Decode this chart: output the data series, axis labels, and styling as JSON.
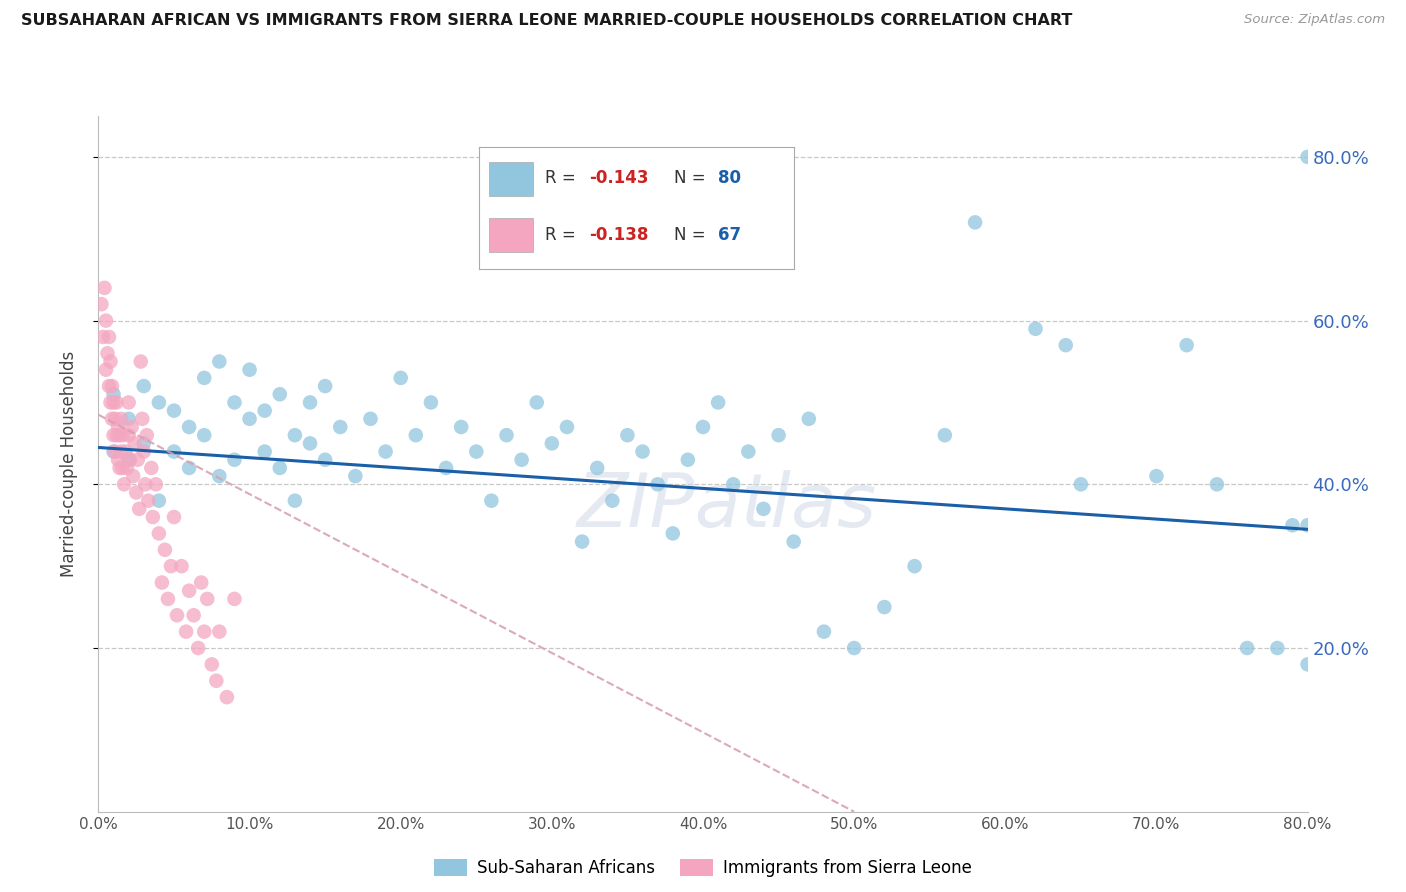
{
  "title": "SUBSAHARAN AFRICAN VS IMMIGRANTS FROM SIERRA LEONE MARRIED-COUPLE HOUSEHOLDS CORRELATION CHART",
  "source": "Source: ZipAtlas.com",
  "ylabel": "Married-couple Households",
  "xlim": [
    0.0,
    0.8
  ],
  "ylim": [
    0.0,
    0.85
  ],
  "xticks": [
    0.0,
    0.1,
    0.2,
    0.3,
    0.4,
    0.5,
    0.6,
    0.7,
    0.8
  ],
  "yticks": [
    0.2,
    0.4,
    0.6,
    0.8
  ],
  "blue_color": "#92c5de",
  "pink_color": "#f4a6c0",
  "trend_blue_color": "#1a5fa8",
  "trend_pink_color": "#d8a0b0",
  "R_blue": -0.143,
  "N_blue": 80,
  "R_pink": -0.138,
  "N_pink": 67,
  "legend_label_blue": "Sub-Saharan Africans",
  "legend_label_pink": "Immigrants from Sierra Leone",
  "watermark": "ZIPatlas",
  "blue_scatter_x": [
    0.01,
    0.01,
    0.02,
    0.02,
    0.03,
    0.03,
    0.04,
    0.04,
    0.05,
    0.05,
    0.06,
    0.06,
    0.07,
    0.07,
    0.08,
    0.08,
    0.09,
    0.09,
    0.1,
    0.1,
    0.11,
    0.11,
    0.12,
    0.12,
    0.13,
    0.13,
    0.14,
    0.14,
    0.15,
    0.15,
    0.16,
    0.17,
    0.18,
    0.19,
    0.2,
    0.21,
    0.22,
    0.23,
    0.24,
    0.25,
    0.26,
    0.27,
    0.28,
    0.29,
    0.3,
    0.31,
    0.32,
    0.33,
    0.34,
    0.35,
    0.36,
    0.37,
    0.38,
    0.39,
    0.4,
    0.41,
    0.42,
    0.43,
    0.44,
    0.45,
    0.46,
    0.47,
    0.48,
    0.5,
    0.52,
    0.54,
    0.56,
    0.58,
    0.62,
    0.64,
    0.65,
    0.7,
    0.72,
    0.74,
    0.76,
    0.78,
    0.79,
    0.8,
    0.8,
    0.8
  ],
  "blue_scatter_y": [
    0.44,
    0.51,
    0.48,
    0.43,
    0.45,
    0.52,
    0.5,
    0.38,
    0.44,
    0.49,
    0.47,
    0.42,
    0.53,
    0.46,
    0.41,
    0.55,
    0.5,
    0.43,
    0.48,
    0.54,
    0.44,
    0.49,
    0.42,
    0.51,
    0.46,
    0.38,
    0.5,
    0.45,
    0.43,
    0.52,
    0.47,
    0.41,
    0.48,
    0.44,
    0.53,
    0.46,
    0.5,
    0.42,
    0.47,
    0.44,
    0.38,
    0.46,
    0.43,
    0.5,
    0.45,
    0.47,
    0.33,
    0.42,
    0.38,
    0.46,
    0.44,
    0.4,
    0.34,
    0.43,
    0.47,
    0.5,
    0.4,
    0.44,
    0.37,
    0.46,
    0.33,
    0.48,
    0.22,
    0.2,
    0.25,
    0.3,
    0.46,
    0.72,
    0.59,
    0.57,
    0.4,
    0.41,
    0.57,
    0.4,
    0.2,
    0.2,
    0.35,
    0.35,
    0.18,
    0.8
  ],
  "pink_scatter_x": [
    0.002,
    0.003,
    0.004,
    0.005,
    0.005,
    0.006,
    0.007,
    0.007,
    0.008,
    0.008,
    0.009,
    0.009,
    0.01,
    0.01,
    0.011,
    0.011,
    0.012,
    0.012,
    0.013,
    0.013,
    0.014,
    0.014,
    0.015,
    0.015,
    0.016,
    0.016,
    0.017,
    0.018,
    0.019,
    0.02,
    0.02,
    0.021,
    0.022,
    0.023,
    0.024,
    0.025,
    0.026,
    0.027,
    0.028,
    0.029,
    0.03,
    0.031,
    0.032,
    0.033,
    0.035,
    0.036,
    0.038,
    0.04,
    0.042,
    0.044,
    0.046,
    0.048,
    0.05,
    0.052,
    0.055,
    0.058,
    0.06,
    0.063,
    0.066,
    0.068,
    0.07,
    0.072,
    0.075,
    0.078,
    0.08,
    0.085,
    0.09
  ],
  "pink_scatter_y": [
    0.62,
    0.58,
    0.64,
    0.54,
    0.6,
    0.56,
    0.52,
    0.58,
    0.5,
    0.55,
    0.48,
    0.52,
    0.46,
    0.5,
    0.44,
    0.48,
    0.46,
    0.5,
    0.43,
    0.47,
    0.42,
    0.46,
    0.44,
    0.48,
    0.42,
    0.46,
    0.4,
    0.44,
    0.42,
    0.46,
    0.5,
    0.43,
    0.47,
    0.41,
    0.45,
    0.39,
    0.43,
    0.37,
    0.55,
    0.48,
    0.44,
    0.4,
    0.46,
    0.38,
    0.42,
    0.36,
    0.4,
    0.34,
    0.28,
    0.32,
    0.26,
    0.3,
    0.36,
    0.24,
    0.3,
    0.22,
    0.27,
    0.24,
    0.2,
    0.28,
    0.22,
    0.26,
    0.18,
    0.16,
    0.22,
    0.14,
    0.26
  ],
  "blue_trend_x0": 0.0,
  "blue_trend_y0": 0.445,
  "blue_trend_x1": 0.8,
  "blue_trend_y1": 0.345,
  "pink_trend_x0": 0.0,
  "pink_trend_y0": 0.485,
  "pink_trend_x1": 0.5,
  "pink_trend_y1": 0.0
}
